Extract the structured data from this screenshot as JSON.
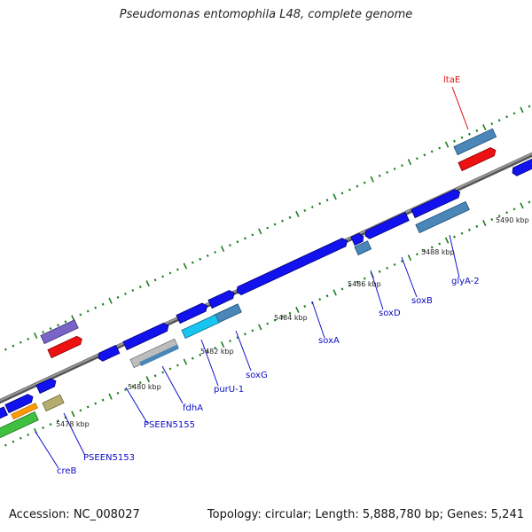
{
  "title": "Pseudomonas entomophila L48, complete genome",
  "footer": {
    "accession": "Accession: NC_008027",
    "topology": "Topology: circular; Length: 5,888,780 bp; Genes: 5,241"
  },
  "colors": {
    "background": "#ffffff",
    "backbone": "#8c8c8c",
    "tick": "#1e7d1e",
    "gene_blue": "#1212ee",
    "gene_steel": "#4a86b8",
    "gene_purple": "#7a64c8",
    "gene_red": "#ee1111",
    "gene_cyan": "#18c4f0",
    "gene_gray": "#bdbdbd",
    "gene_green": "#40c040",
    "gene_orange": "#ff9a00",
    "gene_olive": "#b5ad70",
    "label_blue": "#0b0bc8",
    "label_red": "#dd1111",
    "label_dark": "#222222"
  },
  "kbp_labels": [
    "5478 kbp",
    "5480 kbp",
    "5482 kbp",
    "5484 kbp",
    "5486 kbp",
    "5488 kbp",
    "5490 kbp"
  ],
  "gene_labels": [
    "creB",
    "PSEEN5153",
    "PSEEN5155",
    "fdhA",
    "purU-1",
    "soxG",
    "soxA",
    "soxD",
    "soxB",
    "glyA-2"
  ],
  "highlight_labels": [
    "ltaE"
  ]
}
